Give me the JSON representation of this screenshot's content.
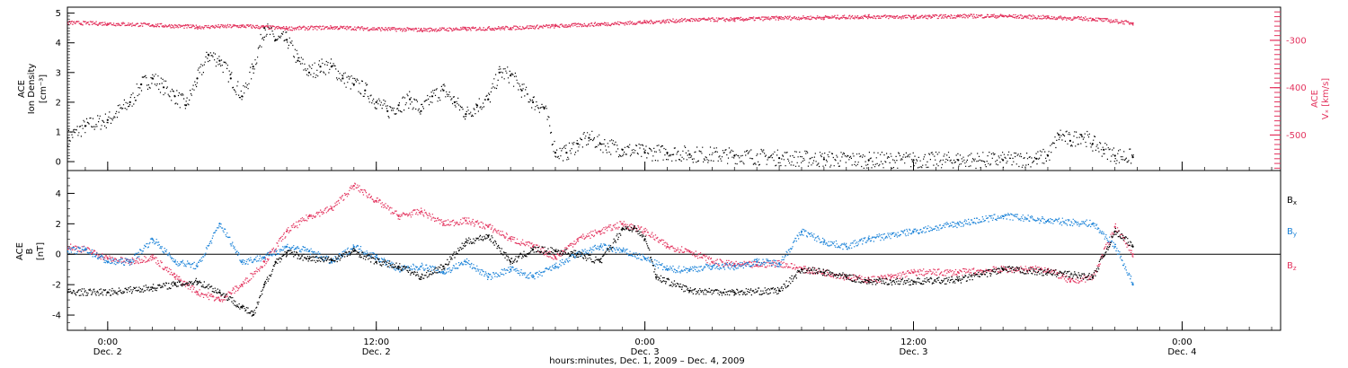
{
  "colors": {
    "density": "#000000",
    "vx": "#e3335e",
    "bx": "#000000",
    "by": "#1a82d8",
    "bz": "#e3335e",
    "frame": "#000000"
  },
  "top_panel": {
    "ylabel_lines": [
      "ACE",
      "Ion Density"
    ],
    "yunit": "[cm⁻³]",
    "right_label_lines": [
      "ACE",
      "Vₓ [km/s]"
    ]
  },
  "bottom_panel": {
    "ylabel_lines": [
      "ACE",
      "B"
    ],
    "yunit": "[nT]"
  },
  "xaxis": {
    "title": "hours:minutes, Dec. 1, 2009 – Dec. 4, 2009",
    "ticks": [
      {
        "time": "0:00",
        "date": "Dec. 2",
        "hours": 24
      },
      {
        "time": "12:00",
        "date": "Dec. 2",
        "hours": 36
      },
      {
        "time": "0:00",
        "date": "Dec. 3",
        "hours": 48
      },
      {
        "time": "12:00",
        "date": "Dec. 3",
        "hours": 60
      },
      {
        "time": "0:00",
        "date": "Dec. 4",
        "hours": 72
      }
    ]
  },
  "chart_data": [
    {
      "type": "scatter",
      "panel": "top",
      "x_unit": "hours since Dec. 1, 2009 00:00",
      "xlim": [
        22.2,
        76.4
      ],
      "ylim_left": [
        -0.3,
        5.2
      ],
      "left_ticks": [
        0,
        1,
        2,
        3,
        4,
        5
      ],
      "ylim_right": [
        -575,
        -230
      ],
      "right_ticks": [
        -300,
        -400,
        -500
      ],
      "series": [
        {
          "axis": "left",
          "x": [
            22.2,
            23.0,
            24.0,
            25.0,
            25.5,
            26.0,
            26.5,
            27.0,
            27.5,
            28.0,
            28.5,
            29.0,
            29.5,
            30.0,
            30.5,
            31.0,
            31.5,
            32.0,
            32.5,
            33.0,
            33.5,
            34.0,
            34.5,
            35.0,
            35.5,
            36.0,
            36.5,
            37.0,
            37.5,
            38.0,
            38.5,
            39.0,
            39.5,
            40.0,
            40.5,
            41.0,
            41.5,
            42.0,
            42.5,
            43.0,
            43.5,
            44.0,
            44.5,
            45.0,
            45.5,
            46.0,
            47.0,
            48.0,
            49.0,
            50.0,
            52.0,
            54.0,
            56.0,
            58.0,
            60.0,
            62.0,
            64.0,
            65.5,
            66.0,
            66.5,
            67.0,
            67.5,
            68.0,
            68.5,
            69.0,
            69.8
          ],
          "values": [
            0.8,
            1.2,
            1.4,
            2.0,
            2.6,
            2.8,
            2.5,
            2.2,
            1.9,
            2.8,
            3.6,
            3.4,
            2.8,
            2.2,
            3.2,
            4.5,
            4.1,
            4.1,
            3.4,
            3.0,
            3.2,
            3.2,
            2.8,
            2.6,
            2.4,
            2.0,
            1.7,
            1.9,
            2.1,
            1.7,
            2.2,
            2.4,
            2.0,
            1.6,
            1.9,
            2.1,
            3.0,
            2.9,
            2.4,
            2.0,
            1.8,
            0.3,
            0.3,
            0.6,
            0.8,
            0.6,
            0.4,
            0.3,
            0.3,
            0.25,
            0.2,
            0.12,
            0.08,
            0.05,
            0.05,
            0.05,
            0.05,
            0.1,
            0.2,
            0.9,
            0.7,
            0.9,
            0.6,
            0.4,
            0.2,
            0.15
          ]
        },
        {
          "axis": "right",
          "x": [
            22.2,
            24.0,
            26.0,
            28.0,
            30.0,
            32.0,
            34.0,
            36.0,
            38.0,
            40.0,
            42.0,
            44.0,
            46.0,
            48.0,
            50.0,
            52.0,
            54.0,
            56.0,
            58.0,
            60.0,
            62.0,
            64.0,
            66.0,
            68.0,
            69.8
          ],
          "values": [
            -263,
            -265,
            -268,
            -272,
            -270,
            -275,
            -273,
            -276,
            -278,
            -276,
            -274,
            -270,
            -266,
            -262,
            -257,
            -256,
            -253,
            -252,
            -250,
            -251,
            -249,
            -249,
            -252,
            -255,
            -264
          ]
        }
      ]
    },
    {
      "type": "line",
      "panel": "bottom",
      "x_unit": "hours since Dec. 1, 2009 00:00",
      "xlim": [
        22.2,
        76.4
      ],
      "ylim": [
        -5.0,
        5.5
      ],
      "y_ticks": [
        -4,
        -2,
        0,
        2,
        4
      ],
      "series": [
        {
          "name": "Bx",
          "x": [
            22.2,
            24.0,
            26.0,
            27.0,
            28.0,
            29.0,
            30.0,
            30.5,
            31.0,
            31.5,
            32.0,
            33.0,
            34.0,
            35.0,
            36.0,
            37.0,
            38.0,
            39.0,
            40.0,
            41.0,
            42.0,
            43.0,
            44.0,
            45.0,
            46.0,
            47.0,
            47.5,
            48.0,
            48.5,
            50.0,
            52.0,
            54.0,
            55.0,
            56.0,
            57.0,
            58.0,
            60.0,
            62.0,
            64.0,
            66.0,
            68.0,
            69.0,
            69.8
          ],
          "values": [
            -2.5,
            -2.5,
            -2.2,
            -2.0,
            -1.8,
            -2.5,
            -3.5,
            -4.0,
            -2.0,
            -0.5,
            0.1,
            -0.3,
            -0.4,
            0.2,
            -0.5,
            -0.8,
            -1.5,
            -0.8,
            0.8,
            1.2,
            -0.5,
            0.3,
            0.2,
            0.0,
            -0.5,
            1.7,
            1.7,
            1.0,
            -1.5,
            -2.4,
            -2.5,
            -2.4,
            -1.0,
            -1.2,
            -1.5,
            -1.8,
            -1.8,
            -1.7,
            -1.0,
            -1.2,
            -1.5,
            1.5,
            0.5
          ]
        },
        {
          "name": "By",
          "x": [
            22.2,
            23.0,
            24.0,
            25.0,
            26.0,
            27.0,
            28.0,
            29.0,
            30.0,
            31.0,
            32.0,
            33.0,
            34.0,
            35.0,
            36.0,
            37.0,
            38.0,
            39.0,
            40.0,
            41.0,
            42.0,
            43.0,
            44.0,
            45.0,
            46.0,
            47.0,
            48.0,
            49.0,
            50.0,
            51.0,
            52.0,
            53.0,
            54.0,
            55.0,
            56.0,
            57.0,
            58.0,
            60.0,
            62.0,
            64.0,
            66.0,
            68.0,
            69.0,
            69.8
          ],
          "values": [
            0.2,
            0.3,
            -0.5,
            -0.5,
            1.0,
            -0.5,
            -0.8,
            2.0,
            -0.5,
            -0.2,
            0.5,
            0.2,
            -0.5,
            0.5,
            -0.2,
            -1.0,
            -0.8,
            -1.2,
            -0.5,
            -1.5,
            -1.0,
            -1.5,
            -0.8,
            0.0,
            0.5,
            0.2,
            -0.3,
            -1.0,
            -1.0,
            -0.8,
            -0.8,
            -0.5,
            -0.6,
            1.5,
            0.8,
            0.5,
            1.0,
            1.5,
            2.0,
            2.5,
            2.2,
            2.0,
            0.5,
            -2.0
          ]
        },
        {
          "name": "Bz",
          "x": [
            22.2,
            23.0,
            24.0,
            25.0,
            26.0,
            27.0,
            28.0,
            29.0,
            30.0,
            31.0,
            32.0,
            33.0,
            34.0,
            35.0,
            36.0,
            37.0,
            38.0,
            39.0,
            40.0,
            41.0,
            42.0,
            43.0,
            44.0,
            45.0,
            46.0,
            47.0,
            48.0,
            49.0,
            50.0,
            51.0,
            52.0,
            53.0,
            54.0,
            55.0,
            56.0,
            57.0,
            58.0,
            59.0,
            60.0,
            62.0,
            64.0,
            66.0,
            67.0,
            68.0,
            69.0,
            69.8
          ],
          "values": [
            0.5,
            0.3,
            -0.3,
            -0.5,
            -0.2,
            -1.5,
            -2.5,
            -3.0,
            -2.0,
            -0.5,
            1.5,
            2.5,
            3.0,
            4.5,
            3.5,
            2.5,
            2.8,
            2.0,
            2.2,
            1.8,
            1.0,
            0.5,
            -0.2,
            1.0,
            1.5,
            2.0,
            1.5,
            0.5,
            0.2,
            -0.5,
            -0.7,
            -0.7,
            -0.6,
            -1.0,
            -1.2,
            -1.5,
            -1.7,
            -1.5,
            -1.2,
            -1.2,
            -1.0,
            -1.0,
            -1.8,
            -1.5,
            1.8,
            0.0
          ]
        }
      ]
    }
  ]
}
